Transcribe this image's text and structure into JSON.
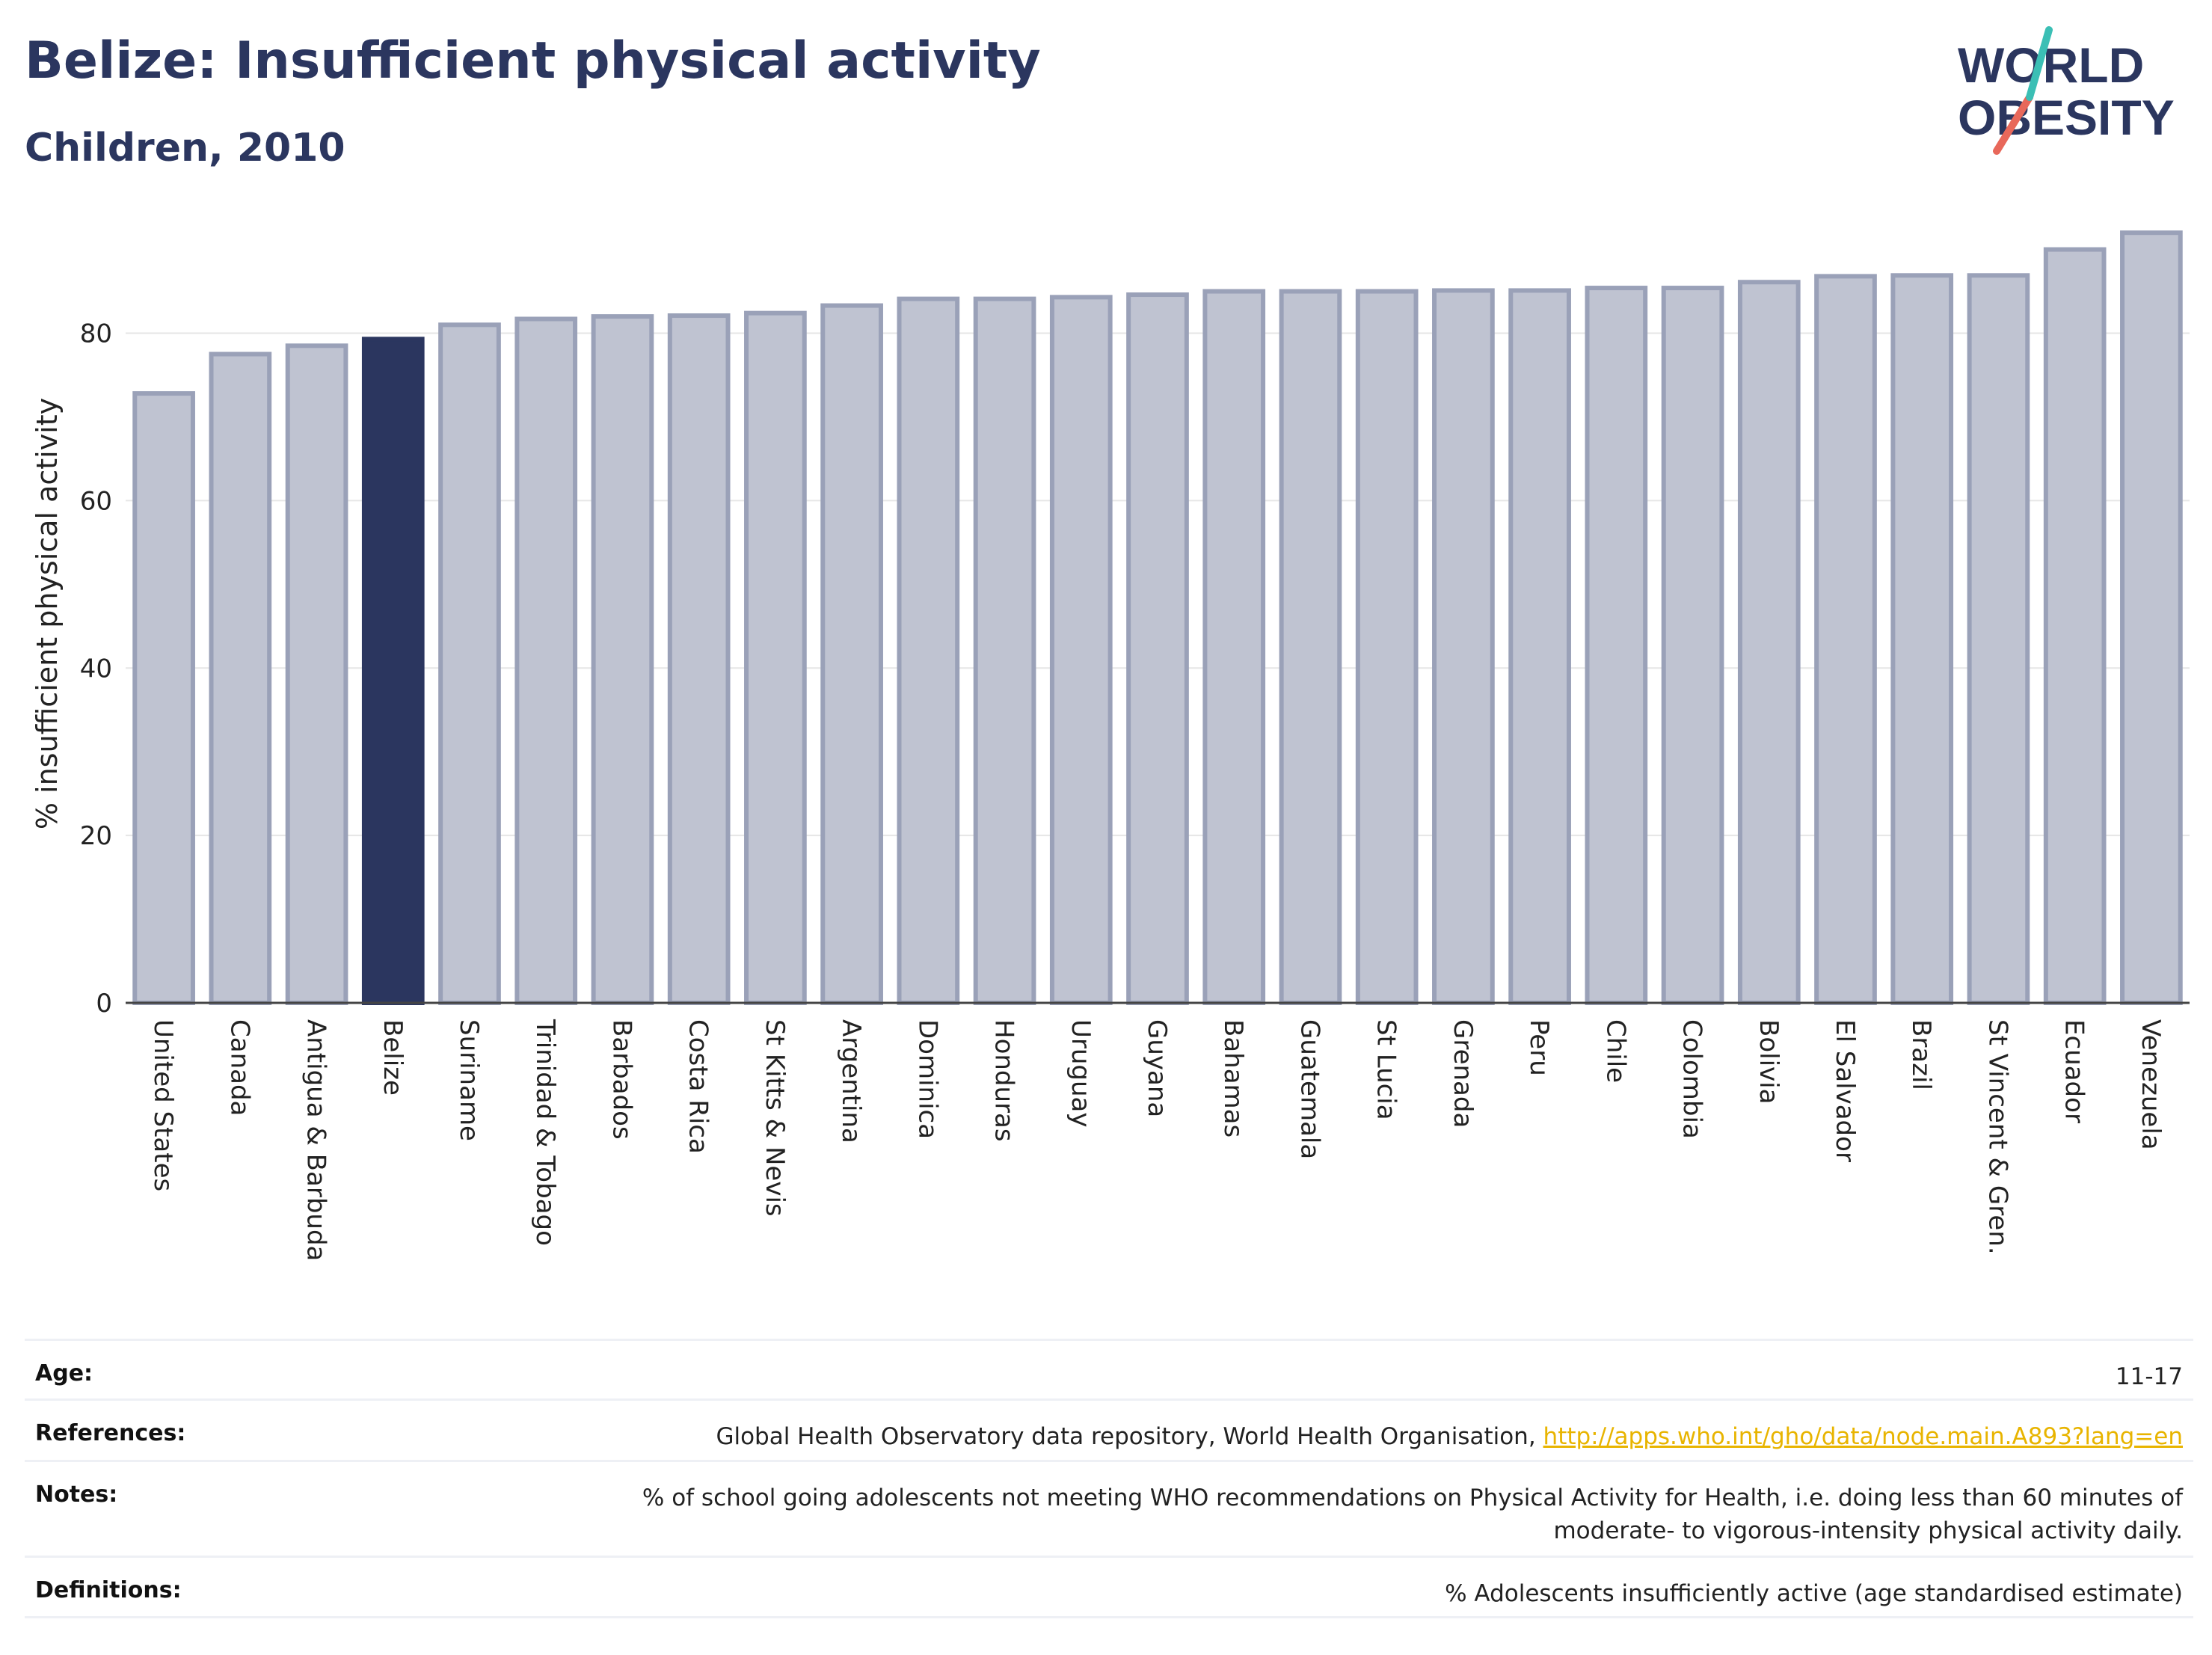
{
  "header": {
    "title": "Belize: Insufficient physical activity",
    "subtitle": "Children, 2010"
  },
  "logo": {
    "line1": "WORLD",
    "line2": "OBESITY",
    "colors": {
      "text": "#2b365f",
      "slash_top": "#3bbfb5",
      "slash_bottom": "#e8685a"
    }
  },
  "chart_data": {
    "type": "bar",
    "ylabel": "% insufficient physical activity",
    "ylim": [
      0,
      93
    ],
    "yticks": [
      0,
      20,
      40,
      60,
      80
    ],
    "grid": true,
    "highlight": "Belize",
    "colors": {
      "bar": "#bfc3d1",
      "bar_border": "#9aa1b8",
      "highlight": "#2b365f"
    },
    "categories": [
      "United States",
      "Canada",
      "Antigua & Barbuda",
      "Belize",
      "Suriname",
      "Trinidad & Tobago",
      "Barbados",
      "Costa Rica",
      "St Kitts & Nevis",
      "Argentina",
      "Dominica",
      "Honduras",
      "Uruguay",
      "Guyana",
      "Bahamas",
      "Guatemala",
      "St Lucia",
      "Grenada",
      "Peru",
      "Chile",
      "Colombia",
      "Bolivia",
      "El Salvador",
      "Brazil",
      "St Vincent & Gren.",
      "Ecuador",
      "Venezuela"
    ],
    "values": [
      72.8,
      77.5,
      78.5,
      79.3,
      81.0,
      81.7,
      82.0,
      82.1,
      82.4,
      83.3,
      84.1,
      84.1,
      84.3,
      84.6,
      85.0,
      85.0,
      85.0,
      85.1,
      85.1,
      85.4,
      85.4,
      86.1,
      86.8,
      86.9,
      86.9,
      90.0,
      92.0
    ]
  },
  "meta": {
    "age_label": "Age:",
    "age_value": "11-17",
    "references_label": "References:",
    "references_text": "Global Health Observatory data repository, World Health Organisation, ",
    "references_link": "http://apps.who.int/gho/data/node.main.A893?lang=en",
    "notes_label": "Notes:",
    "notes_line1": "% of school going adolescents not meeting WHO recommendations on Physical Activity for Health, i.e. doing less than 60 minutes of",
    "notes_line2": "moderate- to vigorous-intensity physical activity daily.",
    "definitions_label": "Definitions:",
    "definitions_value": "% Adolescents insufficiently active (age standardised estimate)"
  }
}
